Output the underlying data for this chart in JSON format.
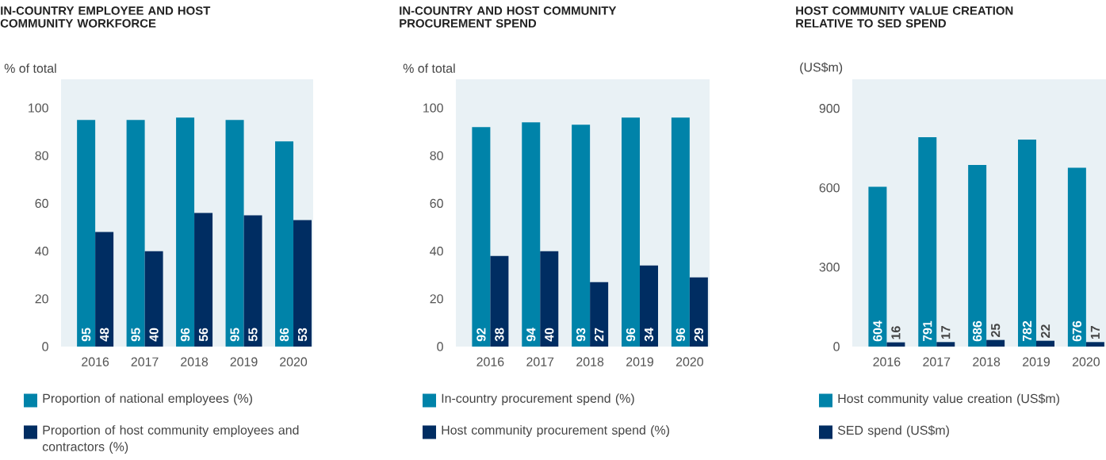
{
  "chart_data": [
    {
      "type": "bar",
      "title": "IN-COUNTRY EMPLOYEE AND HOST COMMUNITY WORKFORCE",
      "ylabel": "% of total",
      "categories": [
        "2016",
        "2017",
        "2018",
        "2019",
        "2020"
      ],
      "series": [
        {
          "name": "Proportion of national employees (%)",
          "color": "#0083a9",
          "values": [
            95,
            95,
            96,
            95,
            86
          ]
        },
        {
          "name": "Proportion of host community employees and contractors (%)",
          "color": "#002d62",
          "values": [
            48,
            40,
            56,
            55,
            53
          ]
        }
      ],
      "ylim": [
        0,
        112
      ],
      "yticks": [
        0,
        20,
        40,
        60,
        80,
        100
      ],
      "data_labels": true,
      "legend": "bottom"
    },
    {
      "type": "bar",
      "title": "IN-COUNTRY AND HOST COMMUNITY PROCUREMENT SPEND",
      "ylabel": "% of total",
      "categories": [
        "2016",
        "2017",
        "2018",
        "2019",
        "2020"
      ],
      "series": [
        {
          "name": "In-country procurement spend (%)",
          "color": "#0083a9",
          "values": [
            92,
            94,
            93,
            96,
            96
          ]
        },
        {
          "name": "Host community procurement spend (%)",
          "color": "#002d62",
          "values": [
            38,
            40,
            27,
            34,
            29
          ]
        }
      ],
      "ylim": [
        0,
        112
      ],
      "yticks": [
        0,
        20,
        40,
        60,
        80,
        100
      ],
      "data_labels": true,
      "legend": "bottom"
    },
    {
      "type": "bar",
      "title": "HOST COMMUNITY VALUE CREATION RELATIVE TO SED SPEND",
      "ylabel": "(US$m)",
      "categories": [
        "2016",
        "2017",
        "2018",
        "2019",
        "2020"
      ],
      "series": [
        {
          "name": "Host community value creation (US$m)",
          "color": "#0083a9",
          "values": [
            604,
            791,
            686,
            782,
            676
          ]
        },
        {
          "name": "SED spend (US$m)",
          "color": "#002d62",
          "values": [
            16,
            17,
            25,
            22,
            17
          ]
        }
      ],
      "ylim": [
        0,
        1010
      ],
      "yticks": [
        0,
        300,
        600,
        900
      ],
      "data_labels": true,
      "legend": "bottom"
    }
  ]
}
